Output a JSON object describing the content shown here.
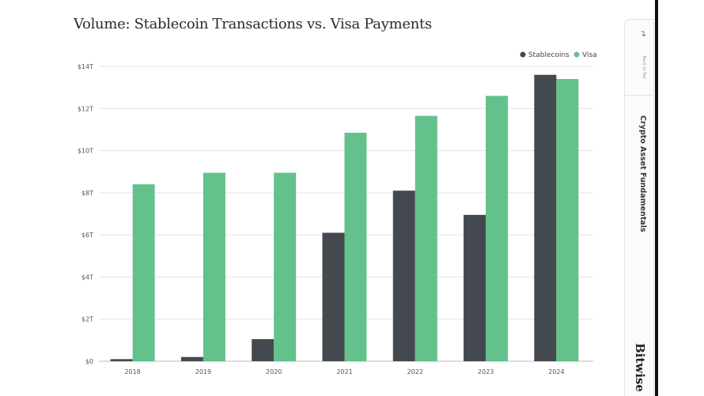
{
  "chart_data": {
    "type": "bar",
    "title": "Volume: Stablecoin Transactions vs. Visa Payments",
    "categories": [
      "2018",
      "2019",
      "2020",
      "2021",
      "2022",
      "2023",
      "2024"
    ],
    "series": [
      {
        "name": "Stablecoins",
        "color": "#44494f",
        "values": [
          0.1,
          0.2,
          1.05,
          6.1,
          8.1,
          6.95,
          13.6
        ]
      },
      {
        "name": "Visa",
        "color": "#63c28b",
        "values": [
          8.4,
          8.95,
          8.95,
          10.85,
          11.65,
          12.6,
          13.4
        ]
      }
    ],
    "yticks": [
      "$0",
      "$2T",
      "$4T",
      "$6T",
      "$8T",
      "$10T",
      "$12T",
      "$14T"
    ],
    "ylim": [
      0,
      14
    ],
    "legend_position": "top-right",
    "grid": true
  },
  "sidebar": {
    "back_icon": "back-arrow-icon",
    "back_label": "Back to Top",
    "section_label": "Crypto Asset Fundamentals",
    "brand": "Bitwise"
  }
}
